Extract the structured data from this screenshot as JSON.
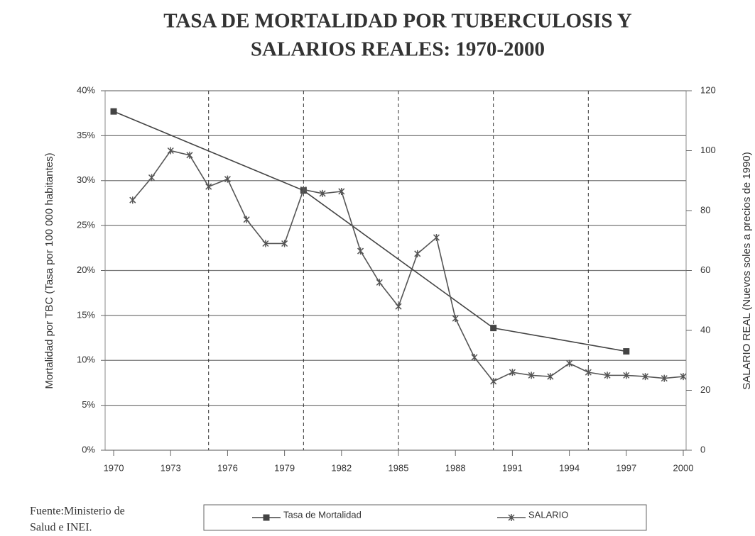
{
  "chart_data": {
    "type": "line",
    "title": [
      "TASA DE MORTALIDAD POR TUBERCULOSIS Y",
      "SALARIOS REALES: 1970-2000"
    ],
    "y_label": "Mortalidad por TBC (Tasa por 100 000 habitantes)",
    "y2_label": "SALARIO REAL (Nuevos soles a precios de 1990)",
    "source": [
      "Fuente:Ministerio de",
      "Salud e INEI."
    ],
    "xlim": [
      1969.55,
      2000.15
    ],
    "xticks": [
      1970,
      1973,
      1976,
      1979,
      1982,
      1985,
      1988,
      1991,
      1994,
      1997,
      2000
    ],
    "xgrid": [
      1975,
      1980,
      1985,
      1990,
      1995
    ],
    "ylim": [
      0,
      40
    ],
    "yticks": [
      {
        "value": 0,
        "label": "0%"
      },
      {
        "value": 5,
        "label": "5%"
      },
      {
        "value": 10,
        "label": "10%"
      },
      {
        "value": 15,
        "label": "15%"
      },
      {
        "value": 20,
        "label": "20%"
      },
      {
        "value": 25,
        "label": "25%"
      },
      {
        "value": 30,
        "label": "30%"
      },
      {
        "value": 35,
        "label": "35%"
      },
      {
        "value": 40,
        "label": "40%"
      }
    ],
    "y2lim": [
      0,
      120
    ],
    "y2ticks": [
      0,
      20,
      40,
      60,
      80,
      100,
      120
    ],
    "grid": true,
    "series": [
      {
        "name": "Tasa de Mortalidad",
        "color": "#444",
        "marker": "square",
        "x": [
          1970,
          1980,
          1990,
          1997
        ],
        "values": [
          37.7,
          28.9,
          13.6,
          11.0
        ]
      },
      {
        "name": "SALARIO",
        "color": "#555",
        "marker": "star",
        "axis": "y2",
        "x": [
          1971,
          1972,
          1973,
          1974,
          1975,
          1976,
          1977,
          1978,
          1979,
          1980,
          1981,
          1982,
          1983,
          1984,
          1985,
          1986,
          1987,
          1988,
          1989,
          1990,
          1991,
          1992,
          1993,
          1994,
          1995,
          1996,
          1997,
          1998,
          1999,
          2000
        ],
        "values": [
          83.5,
          91,
          100,
          98.5,
          88,
          90.5,
          77,
          69,
          69,
          87,
          85.7,
          86.4,
          66.5,
          56,
          48,
          65.6,
          71,
          44,
          31,
          23,
          26,
          25,
          24.6,
          29,
          26,
          25,
          25,
          24.6,
          24,
          24.6
        ]
      }
    ]
  }
}
